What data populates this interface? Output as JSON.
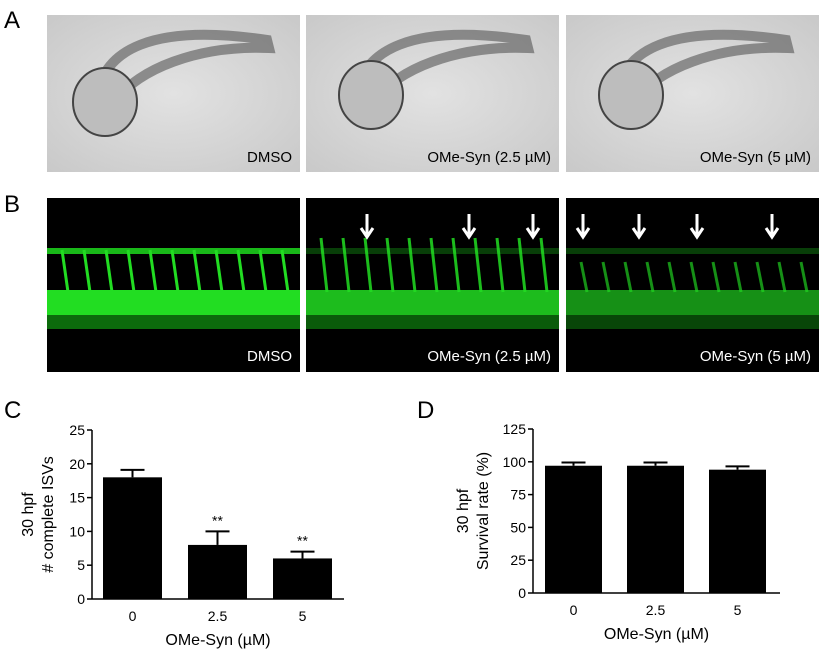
{
  "panel_labels": {
    "a": "A",
    "b": "B",
    "c": "C",
    "d": "D"
  },
  "panel_a": {
    "captions": [
      "DMSO",
      "OMe-Syn (2.5 µM)",
      "OMe-Syn (5 µM)"
    ]
  },
  "panel_b": {
    "captions": [
      "DMSO",
      "OMe-Syn (2.5 µM)",
      "OMe-Syn (5 µM)"
    ],
    "arrow_counts": [
      0,
      3,
      4
    ]
  },
  "chart_data": [
    {
      "type": "bar",
      "panel": "C",
      "categories": [
        "0",
        "2.5",
        "5"
      ],
      "values": [
        18,
        8,
        6
      ],
      "errors": [
        1.1,
        2,
        1
      ],
      "annotations": [
        "",
        "**",
        "**"
      ],
      "xlabel": "OMe-Syn (µM)",
      "ylabel_lines": [
        "30 hpf",
        "# complete ISVs"
      ],
      "ylim": [
        0,
        25
      ],
      "yticks": [
        "0",
        "5",
        "10",
        "15",
        "20",
        "25"
      ],
      "grid": false
    },
    {
      "type": "bar",
      "panel": "D",
      "categories": [
        "0",
        "2.5",
        "5"
      ],
      "values": [
        97,
        97,
        94
      ],
      "errors": [
        2.5,
        2.5,
        2.5
      ],
      "annotations": [
        "",
        "",
        ""
      ],
      "xlabel": "OMe-Syn (µM)",
      "ylabel_lines": [
        "30 hpf",
        "Survival rate (%)"
      ],
      "ylim": [
        0,
        125
      ],
      "yticks": [
        "0",
        "25",
        "50",
        "75",
        "100",
        "125"
      ],
      "grid": false
    }
  ]
}
